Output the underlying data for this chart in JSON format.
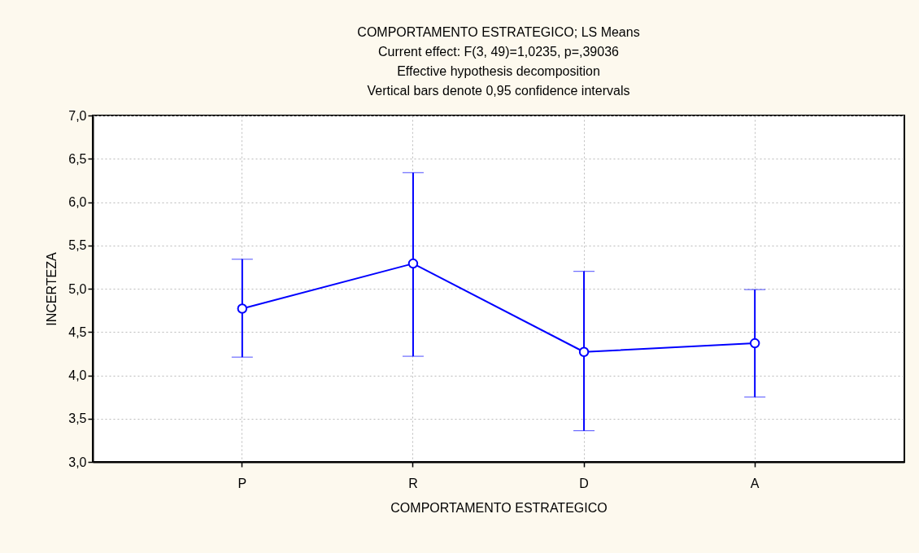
{
  "chart_data": {
    "type": "line",
    "title": "COMPORTAMENTO ESTRATEGICO; LS Means",
    "subtitle": "Current effect: F(3, 49)=1,0235, p=,39036",
    "annotations": [
      "Effective hypothesis decomposition",
      "Vertical bars denote 0,95 confidence intervals"
    ],
    "xlabel": "COMPORTAMENTO ESTRATEGICO",
    "ylabel": "INCERTEZA",
    "categories": [
      "P",
      "R",
      "D",
      "A"
    ],
    "series": [
      {
        "color": "#0000ff",
        "values": [
          4.77,
          5.29,
          4.27,
          4.37
        ],
        "errors": [
          [
            4.21,
            5.34
          ],
          [
            4.22,
            6.34
          ],
          [
            3.36,
            5.2
          ],
          [
            3.75,
            4.99
          ]
        ]
      }
    ],
    "ylim": [
      3,
      7
    ],
    "yticks": [
      {
        "value": 3,
        "label": "3,0"
      },
      {
        "value": 3.5,
        "label": "3,5"
      },
      {
        "value": 4,
        "label": "4,0"
      },
      {
        "value": 4.5,
        "label": "4,5"
      },
      {
        "value": 5,
        "label": "5,0"
      },
      {
        "value": 5.5,
        "label": "5,5"
      },
      {
        "value": 6,
        "label": "6,0"
      },
      {
        "value": 6.5,
        "label": "6,5"
      },
      {
        "value": 7,
        "label": "7,0"
      }
    ],
    "grid": true,
    "marker": "circle",
    "line_style": "solid"
  }
}
